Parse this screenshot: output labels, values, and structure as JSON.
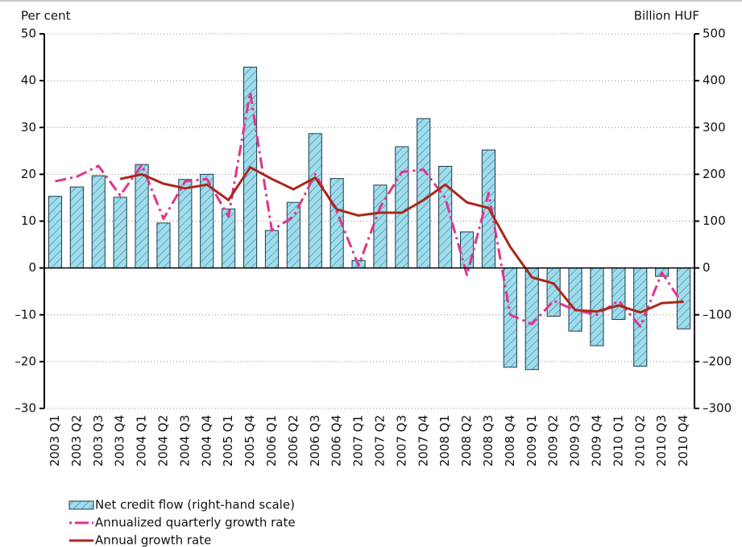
{
  "chart_data": {
    "type": "bar-line",
    "y_label": "Per cent",
    "y2_label": "Billion HUF",
    "categories": [
      "2003 Q1",
      "2003 Q2",
      "2003 Q3",
      "2003 Q4",
      "2004 Q1",
      "2004 Q2",
      "2004 Q3",
      "2004 Q4",
      "2005 Q1",
      "2005 Q4",
      "2006 Q1",
      "2006 Q2",
      "2006 Q3",
      "2006 Q4",
      "2007 Q1",
      "2007 Q2",
      "2007 Q3",
      "2007 Q4",
      "2008 Q1",
      "2008 Q2",
      "2008 Q3",
      "2008 Q4",
      "2009 Q1",
      "2009 Q2",
      "2009 Q3",
      "2009 Q4",
      "2010 Q1",
      "2010 Q2",
      "2010 Q3",
      "2010 Q4"
    ],
    "series": [
      {
        "name": "Net credit flow (right-hand scale)",
        "type": "bar",
        "axis": "y2",
        "color": "#9fdcec",
        "values": [
          153,
          173,
          197,
          151,
          221,
          96,
          189,
          200,
          126,
          429,
          80,
          140,
          287,
          191,
          16,
          177,
          259,
          319,
          217,
          77,
          252,
          -212,
          -217,
          -103,
          -135,
          -166,
          -110,
          -210,
          -18,
          -130
        ]
      },
      {
        "name": "Annualized quarterly growth rate",
        "type": "line",
        "style": "dashdot",
        "color": "#e0358a",
        "values": [
          18.5,
          19.5,
          21.8,
          15.5,
          22,
          10.5,
          18.5,
          19,
          11,
          37.5,
          8,
          11,
          20,
          12,
          0.5,
          13,
          20.5,
          21,
          15,
          -1.5,
          16,
          -10,
          -12,
          -7,
          -9,
          -10,
          -7,
          -12.5,
          -1,
          -8
        ]
      },
      {
        "name": "Annual growth rate",
        "type": "line",
        "style": "solid",
        "color": "#a8281a",
        "values": [
          null,
          null,
          null,
          19,
          20,
          18,
          17,
          17.8,
          14.5,
          21.5,
          19,
          16.8,
          19.3,
          12.5,
          11.2,
          11.8,
          11.8,
          14.5,
          17.8,
          14,
          12.8,
          4.5,
          -2,
          -3.3,
          -9,
          -9.3,
          -8,
          -9.5,
          -7.5,
          -7.2
        ]
      }
    ],
    "ylim": [
      -30,
      50
    ],
    "yticks": [
      {
        "value": -30,
        "label": "–30"
      },
      {
        "value": -20,
        "label": "–20"
      },
      {
        "value": -10,
        "label": "–10"
      },
      0,
      10,
      20,
      30,
      40,
      50
    ],
    "y2lim": [
      -300,
      500
    ],
    "y2ticks": [
      {
        "value": -300,
        "label": "–300"
      },
      {
        "value": -200,
        "label": "–200"
      },
      {
        "value": -100,
        "label": "–100"
      },
      0,
      100,
      200,
      300,
      400,
      500
    ],
    "grid": true
  }
}
